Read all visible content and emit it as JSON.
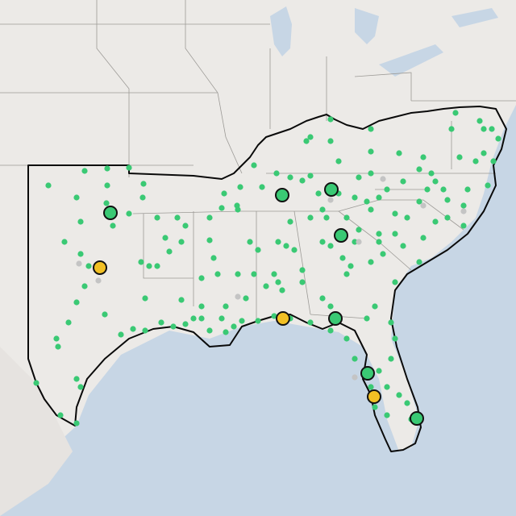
{
  "map": {
    "colors": {
      "land": "#eceae7",
      "water": "#c7d6e5",
      "region_outline": "#0a0a0a",
      "state_lines": "#9c9a96",
      "station_green": "#3ac974",
      "station_gray": "#c4c4c4",
      "hub_green": "#3ac974",
      "hub_yellow": "#f2c024"
    },
    "legend": "none",
    "hubs": [
      {
        "status": "green"
      },
      {
        "status": "green"
      },
      {
        "status": "green"
      },
      {
        "status": "green"
      },
      {
        "status": "green"
      },
      {
        "status": "green"
      },
      {
        "status": "green"
      },
      {
        "status": "yellow"
      },
      {
        "status": "yellow"
      },
      {
        "status": "yellow"
      }
    ]
  }
}
